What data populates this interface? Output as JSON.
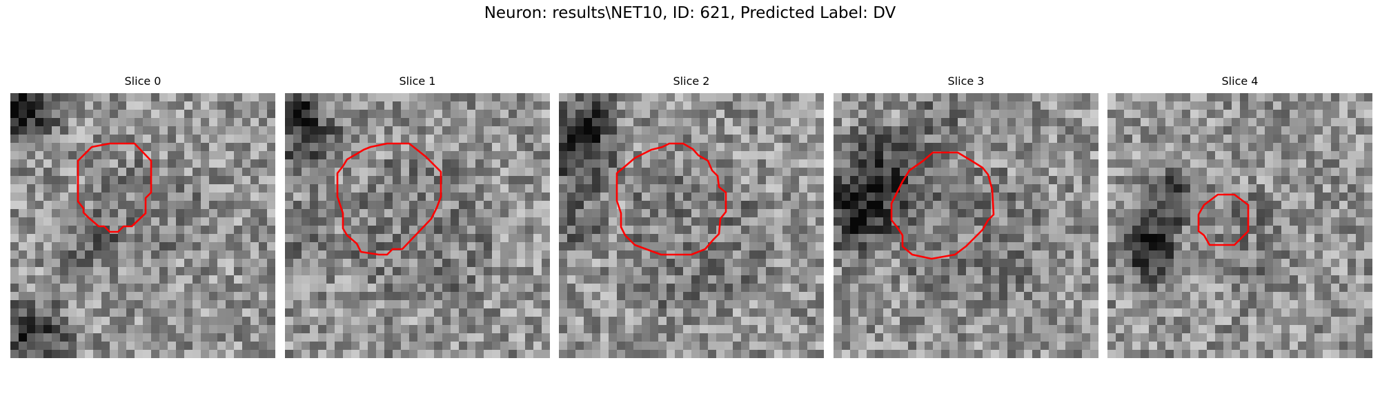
{
  "figure": {
    "title": "Neuron: results\\NET10, ID: 621, Predicted Label: DV",
    "outline_color": "#ff0000"
  },
  "panels": [
    {
      "title": "Slice 0"
    },
    {
      "title": "Slice 1"
    },
    {
      "title": "Slice 2"
    },
    {
      "title": "Slice 3"
    },
    {
      "title": "Slice 4"
    }
  ]
}
